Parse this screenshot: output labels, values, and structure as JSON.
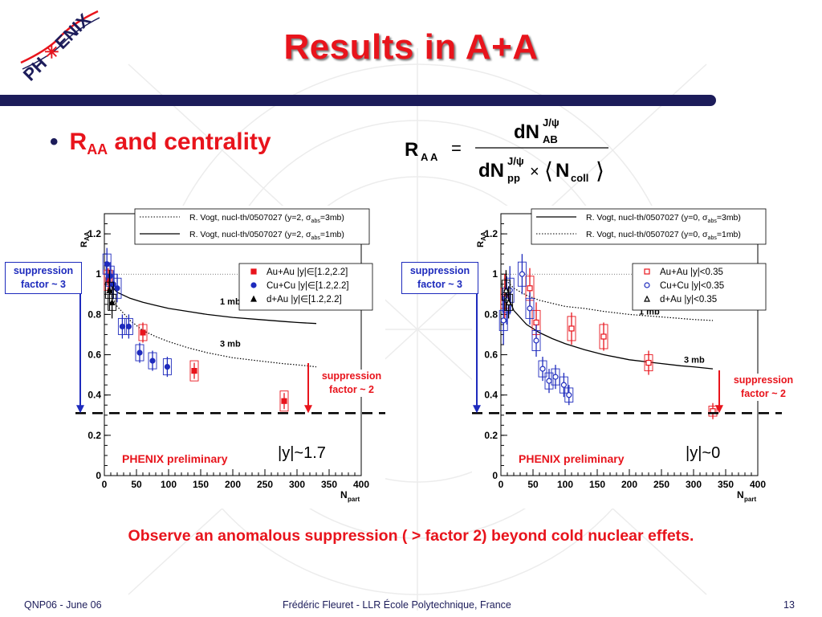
{
  "slide": {
    "title": "Results in A+A",
    "logo_text": "PHENIX",
    "bullet": {
      "r": "R",
      "sub": "AA",
      "text": "and centrality"
    },
    "formula": {
      "lhs": "R",
      "lhs_sub": "A A",
      "num_main": "dN",
      "num_sup": "J/ψ",
      "num_sub": "AB",
      "den_main": "dN",
      "den_sup": "J/ψ",
      "den_sub": "pp",
      "times": "×",
      "ncoll_main": "N",
      "ncoll_sub": "coll"
    },
    "observation": "Observe an anomalous suppression ( > factor 2) beyond cold nuclear effets.",
    "footer": {
      "left": "QNP06 - June 06",
      "center": "Frédéric Fleuret - LLR École Polytechnique, France",
      "page": "13"
    },
    "colors": {
      "title_red": "#e8141c",
      "navy": "#1c1c5a",
      "blue": "#1e2bbd"
    }
  },
  "chart_data": [
    {
      "type": "scatter",
      "id": "left",
      "ylabel_main": "R",
      "ylabel_sub": "AA",
      "xlabel_main": "N",
      "xlabel_sub": "part",
      "xlim": [
        0,
        400
      ],
      "ylim": [
        0,
        1.3
      ],
      "xticks": [
        0,
        50,
        100,
        150,
        200,
        250,
        300,
        350,
        400
      ],
      "yticks": [
        0,
        0.2,
        0.4,
        0.6,
        0.8,
        1,
        1.2
      ],
      "ytick_labels": [
        "0",
        "0.2",
        "0.4",
        "0.6",
        "0.8",
        "1",
        "1.2"
      ],
      "refline_y": 1.0,
      "threshold_y": 0.31,
      "rapidity_label": "|y|~1.7",
      "preliminary": "PHENIX preliminary",
      "model_legend": [
        {
          "style": "dotted",
          "text": "R. Vogt, nucl-th/0507027 (y=2, σ",
          "sub": "abs",
          "tail": "=3mb)"
        },
        {
          "style": "solid",
          "text": "R. Vogt, nucl-th/0507027 (y=2, σ",
          "sub": "abs",
          "tail": "=1mb)"
        }
      ],
      "data_legend": [
        {
          "marker": "square-filled",
          "color": "#e8141c",
          "text": "Au+Au |y|∈[1.2,2.2]"
        },
        {
          "marker": "circle-filled",
          "color": "#1e2bbd",
          "text": "Cu+Cu |y|∈[1.2,2.2]"
        },
        {
          "marker": "triangle-filled",
          "color": "#000000",
          "text": "d+Au |y|∈[1.2,2.2]"
        }
      ],
      "curves": [
        {
          "name": "1 mb",
          "style": "solid",
          "label_at": [
            180,
            0.85
          ],
          "x": [
            5,
            20,
            40,
            60,
            80,
            100,
            130,
            160,
            200,
            240,
            280,
            300,
            330
          ],
          "y": [
            0.96,
            0.91,
            0.88,
            0.86,
            0.845,
            0.83,
            0.815,
            0.8,
            0.785,
            0.775,
            0.765,
            0.76,
            0.755
          ]
        },
        {
          "name": "3 mb",
          "style": "dotted",
          "label_at": [
            180,
            0.64
          ],
          "x": [
            5,
            20,
            40,
            60,
            80,
            100,
            130,
            160,
            200,
            240,
            280,
            300,
            330
          ],
          "y": [
            0.93,
            0.84,
            0.77,
            0.72,
            0.69,
            0.665,
            0.635,
            0.61,
            0.585,
            0.57,
            0.555,
            0.55,
            0.54
          ]
        }
      ],
      "series": [
        {
          "name": "Au+Au",
          "marker": "square-filled",
          "color": "#e8141c",
          "points": [
            {
              "x": 6,
              "y": 0.97,
              "err": 0.06,
              "sys": 0.1
            },
            {
              "x": 60,
              "y": 0.71,
              "err": 0.05,
              "sys": 0.08
            },
            {
              "x": 140,
              "y": 0.52,
              "err": 0.04,
              "sys": 0.1
            },
            {
              "x": 280,
              "y": 0.37,
              "err": 0.04,
              "sys": 0.1
            }
          ]
        },
        {
          "name": "Cu+Cu",
          "marker": "circle-filled",
          "color": "#1e2bbd",
          "points": [
            {
              "x": 4,
              "y": 1.05,
              "err": 0.08,
              "sys": 0.1
            },
            {
              "x": 9,
              "y": 0.99,
              "err": 0.07,
              "sys": 0.1
            },
            {
              "x": 14,
              "y": 0.95,
              "err": 0.07,
              "sys": 0.1
            },
            {
              "x": 20,
              "y": 0.93,
              "err": 0.07,
              "sys": 0.1
            },
            {
              "x": 28,
              "y": 0.74,
              "err": 0.06,
              "sys": 0.08
            },
            {
              "x": 38,
              "y": 0.74,
              "err": 0.06,
              "sys": 0.08
            },
            {
              "x": 55,
              "y": 0.61,
              "err": 0.05,
              "sys": 0.08
            },
            {
              "x": 75,
              "y": 0.57,
              "err": 0.05,
              "sys": 0.08
            },
            {
              "x": 98,
              "y": 0.54,
              "err": 0.05,
              "sys": 0.08
            }
          ]
        },
        {
          "name": "d+Au",
          "marker": "triangle-filled",
          "color": "#000000",
          "points": [
            {
              "x": 8,
              "y": 0.92,
              "err": 0.1,
              "sys": 0.08
            },
            {
              "x": 12,
              "y": 0.86,
              "err": 0.08,
              "sys": 0.08
            }
          ]
        }
      ],
      "callouts": {
        "left": [
          "suppression",
          "factor ~ 3"
        ],
        "right": [
          "suppression",
          "factor ~ 2"
        ]
      },
      "arrow_colors": {
        "left": "#1e2bbd",
        "right": "#e8141c"
      }
    },
    {
      "type": "scatter",
      "id": "right",
      "ylabel_main": "R",
      "ylabel_sub": "AA",
      "xlabel_main": "N",
      "xlabel_sub": "part",
      "xlim": [
        0,
        400
      ],
      "ylim": [
        0,
        1.3
      ],
      "xticks": [
        0,
        50,
        100,
        150,
        200,
        250,
        300,
        350,
        400
      ],
      "yticks": [
        0,
        0.2,
        0.4,
        0.6,
        0.8,
        1,
        1.2
      ],
      "ytick_labels": [
        "0",
        "0.2",
        "0.4",
        "0.6",
        "0.8",
        "1",
        "1.2"
      ],
      "refline_y": 1.0,
      "threshold_y": 0.31,
      "rapidity_label": "|y|~0",
      "preliminary": "PHENIX preliminary",
      "model_legend": [
        {
          "style": "solid",
          "text": "R. Vogt, nucl-th/0507027 (y=0, σ",
          "sub": "abs",
          "tail": "=3mb)"
        },
        {
          "style": "dotted",
          "text": "R. Vogt, nucl-th/0507027 (y=0, σ",
          "sub": "abs",
          "tail": "=1mb)"
        }
      ],
      "data_legend": [
        {
          "marker": "square-open",
          "color": "#e8141c",
          "text": "Au+Au |y|<0.35"
        },
        {
          "marker": "circle-open",
          "color": "#1e2bbd",
          "text": "Cu+Cu |y|<0.35"
        },
        {
          "marker": "triangle-open",
          "color": "#000000",
          "text": "d+Au |y|<0.35"
        }
      ],
      "curves": [
        {
          "name": "1 mb",
          "style": "dotted",
          "label_at": [
            215,
            0.8
          ],
          "x": [
            5,
            20,
            40,
            60,
            80,
            100,
            130,
            160,
            200,
            240,
            280,
            300,
            330
          ],
          "y": [
            0.98,
            0.93,
            0.895,
            0.87,
            0.855,
            0.84,
            0.83,
            0.815,
            0.8,
            0.79,
            0.78,
            0.775,
            0.77
          ]
        },
        {
          "name": "3 mb",
          "style": "solid",
          "label_at": [
            285,
            0.56
          ],
          "x": [
            5,
            20,
            40,
            60,
            80,
            100,
            130,
            160,
            200,
            240,
            280,
            300,
            330
          ],
          "y": [
            0.94,
            0.82,
            0.75,
            0.71,
            0.68,
            0.655,
            0.625,
            0.6,
            0.575,
            0.56,
            0.545,
            0.54,
            0.53
          ]
        }
      ],
      "series": [
        {
          "name": "Au+Au",
          "marker": "square-open",
          "color": "#e8141c",
          "points": [
            {
              "x": 6,
              "y": 0.88,
              "err": 0.12,
              "sys": 0.1
            },
            {
              "x": 45,
              "y": 0.93,
              "err": 0.1,
              "sys": 0.12
            },
            {
              "x": 55,
              "y": 0.76,
              "err": 0.1,
              "sys": 0.12
            },
            {
              "x": 110,
              "y": 0.73,
              "err": 0.08,
              "sys": 0.12
            },
            {
              "x": 160,
              "y": 0.69,
              "err": 0.07,
              "sys": 0.12
            },
            {
              "x": 230,
              "y": 0.56,
              "err": 0.06,
              "sys": 0.08
            },
            {
              "x": 330,
              "y": 0.32,
              "err": 0.04,
              "sys": 0.05
            }
          ]
        },
        {
          "name": "Cu+Cu",
          "marker": "circle-open",
          "color": "#1e2bbd",
          "points": [
            {
              "x": 4,
              "y": 0.77,
              "err": 0.12,
              "sys": 0.1
            },
            {
              "x": 9,
              "y": 0.87,
              "err": 0.12,
              "sys": 0.12
            },
            {
              "x": 14,
              "y": 0.92,
              "err": 0.12,
              "sys": 0.12
            },
            {
              "x": 33,
              "y": 1.0,
              "err": 0.1,
              "sys": 0.12
            },
            {
              "x": 45,
              "y": 0.83,
              "err": 0.08,
              "sys": 0.1
            },
            {
              "x": 55,
              "y": 0.67,
              "err": 0.08,
              "sys": 0.1
            },
            {
              "x": 65,
              "y": 0.53,
              "err": 0.06,
              "sys": 0.08
            },
            {
              "x": 75,
              "y": 0.47,
              "err": 0.06,
              "sys": 0.08
            },
            {
              "x": 85,
              "y": 0.49,
              "err": 0.06,
              "sys": 0.08
            },
            {
              "x": 98,
              "y": 0.45,
              "err": 0.06,
              "sys": 0.08
            },
            {
              "x": 106,
              "y": 0.4,
              "err": 0.05,
              "sys": 0.07
            }
          ]
        },
        {
          "name": "d+Au",
          "marker": "triangle-open",
          "color": "#000000",
          "points": [
            {
              "x": 8,
              "y": 0.92,
              "err": 0.1,
              "sys": 0.1
            },
            {
              "x": 12,
              "y": 0.86,
              "err": 0.08,
              "sys": 0.08
            }
          ]
        }
      ],
      "callouts": {
        "left": [
          "suppression",
          "factor ~ 3"
        ],
        "right": [
          "suppression",
          "factor ~ 2"
        ]
      },
      "arrow_colors": {
        "left": "#1e2bbd",
        "right": "#e8141c"
      }
    }
  ]
}
